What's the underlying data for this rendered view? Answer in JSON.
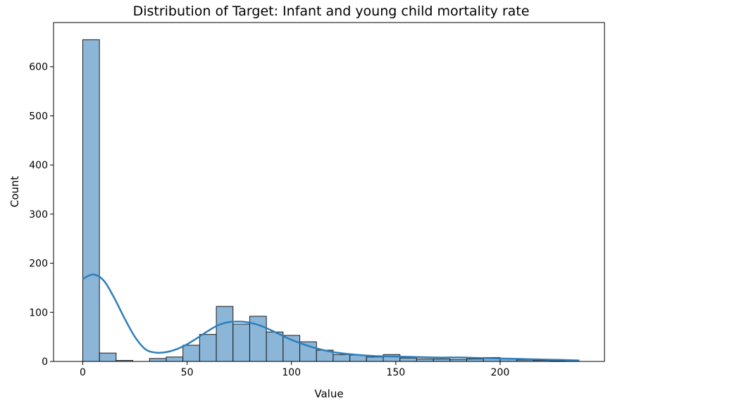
{
  "chart_data": {
    "type": "histogram",
    "title": "Distribution of Target: Infant and young child mortality rate",
    "xlabel": "Value",
    "ylabel": "Count",
    "xlim": [
      -14,
      250
    ],
    "ylim": [
      0,
      690
    ],
    "xticks": [
      0,
      50,
      100,
      150,
      200
    ],
    "yticks": [
      0,
      100,
      200,
      300,
      400,
      500,
      600
    ],
    "bin_edges": [
      0,
      8,
      16,
      24,
      32,
      40,
      48,
      56,
      64,
      72,
      80,
      88,
      96,
      104,
      112,
      120,
      128,
      136,
      144,
      152,
      160,
      168,
      176,
      184,
      192,
      200,
      208,
      216,
      224,
      232,
      240
    ],
    "counts": [
      655,
      17,
      2,
      0,
      6,
      9,
      33,
      55,
      112,
      76,
      92,
      60,
      53,
      40,
      23,
      14,
      13,
      9,
      14,
      7,
      5,
      5,
      4,
      5,
      8,
      5,
      3,
      2,
      1,
      0
    ],
    "bar_color": "#8bb6d8",
    "bar_edge_color": "#1a1a1a",
    "kde": {
      "color": "#2e7fbb",
      "x": [
        0,
        5,
        10,
        15,
        20,
        25,
        30,
        35,
        40,
        45,
        50,
        55,
        60,
        65,
        70,
        75,
        80,
        85,
        90,
        95,
        100,
        110,
        120,
        130,
        140,
        150,
        160,
        170,
        180,
        190,
        200,
        210,
        220,
        230,
        238
      ],
      "y": [
        168,
        177,
        165,
        130,
        88,
        50,
        25,
        18,
        19,
        25,
        35,
        48,
        62,
        74,
        80,
        81,
        79,
        73,
        64,
        54,
        44,
        29,
        19,
        14,
        11,
        10,
        9,
        8,
        8,
        7,
        6,
        5,
        4,
        3,
        2
      ]
    }
  }
}
